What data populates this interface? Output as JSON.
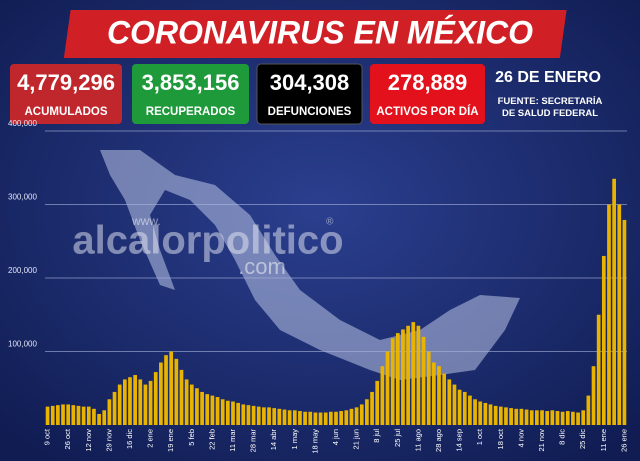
{
  "header": {
    "title": "CORONAVIRUS EN MÉXICO",
    "date": "26 DE ENERO",
    "source": "FUENTE: SECRETARÍA DE SALUD FEDERAL"
  },
  "stats": [
    {
      "value": "4,779,296",
      "label": "ACUMULADOS",
      "color": "#c0272d"
    },
    {
      "value": "3,853,156",
      "label": "RECUPERADOS",
      "color": "#1e9a3a"
    },
    {
      "value": "304,308",
      "label": "DEFUNCIONES",
      "color": "#000000"
    },
    {
      "value": "278,889",
      "label": "ACTIVOS POR DÍA",
      "color": "#e3111b"
    }
  ],
  "watermark": {
    "prefix": "www.",
    "name": "alcalorpolitico",
    "mark": "®",
    "suffix": ".com"
  },
  "chart_data": {
    "type": "bar",
    "color": "#e8b400",
    "grid": true,
    "ylim": [
      0,
      400000
    ],
    "yticks": [
      {
        "value": 100000,
        "label": "100,000"
      },
      {
        "value": 200000,
        "label": "200,000"
      },
      {
        "value": 300000,
        "label": "300,000"
      },
      {
        "value": 400000,
        "label": "400,000"
      }
    ],
    "categories": [
      "9 oct",
      null,
      null,
      null,
      "26 oct",
      null,
      null,
      null,
      "12 nov",
      null,
      null,
      null,
      "29 nov",
      null,
      null,
      null,
      "16 dic",
      null,
      null,
      null,
      "2 ene",
      null,
      null,
      null,
      "19 ene",
      null,
      null,
      null,
      "5 feb",
      null,
      null,
      null,
      "22 feb",
      null,
      null,
      null,
      "11 mar",
      null,
      null,
      null,
      "28 mar",
      null,
      null,
      null,
      "14 abr",
      null,
      null,
      null,
      "1 may",
      null,
      null,
      null,
      "18 may",
      null,
      null,
      null,
      "4 jun",
      null,
      null,
      null,
      "21 jun",
      null,
      null,
      null,
      "8 jul",
      null,
      null,
      null,
      "25 jul",
      null,
      null,
      null,
      "11 ago",
      null,
      null,
      null,
      "28 ago",
      null,
      null,
      null,
      "14 sep",
      null,
      null,
      null,
      "1 oct",
      null,
      null,
      null,
      "18 oct",
      null,
      null,
      null,
      "4 nov",
      null,
      null,
      null,
      "21 nov",
      null,
      null,
      null,
      "8 dic",
      null,
      null,
      null,
      "25 dic",
      null,
      null,
      null,
      "11 ene",
      null,
      null,
      null,
      "26 ene"
    ],
    "values": [
      25000,
      26000,
      27000,
      28000,
      28000,
      27000,
      26000,
      25000,
      25000,
      22000,
      15000,
      20000,
      35000,
      45000,
      55000,
      62000,
      65000,
      68000,
      62000,
      55000,
      60000,
      72000,
      85000,
      95000,
      100000,
      90000,
      75000,
      62000,
      55000,
      50000,
      45000,
      42000,
      40000,
      38000,
      35000,
      33000,
      32000,
      30000,
      28000,
      27000,
      26000,
      25000,
      24000,
      24000,
      23000,
      22000,
      21000,
      20000,
      20000,
      19000,
      18000,
      18000,
      17000,
      17000,
      17000,
      18000,
      18000,
      19000,
      20000,
      22000,
      24000,
      28000,
      35000,
      45000,
      60000,
      80000,
      100000,
      118000,
      125000,
      130000,
      135000,
      140000,
      135000,
      120000,
      100000,
      85000,
      80000,
      70000,
      62000,
      55000,
      48000,
      45000,
      40000,
      35000,
      32000,
      30000,
      28000,
      26000,
      25000,
      24000,
      23000,
      22000,
      22000,
      21000,
      20000,
      20000,
      20000,
      19000,
      20000,
      19000,
      18000,
      19000,
      18000,
      17000,
      20000,
      40000,
      80000,
      150000,
      230000,
      300000,
      335000,
      300000,
      279000
    ]
  }
}
